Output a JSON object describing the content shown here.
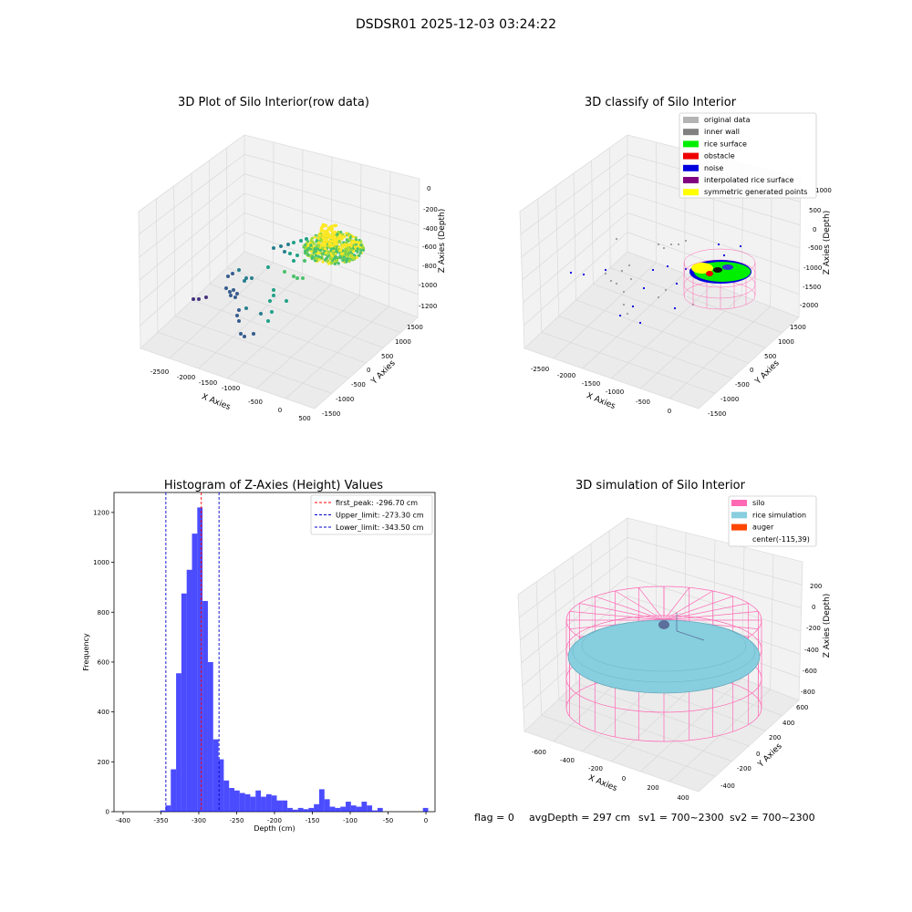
{
  "figure": {
    "suptitle": "DSDSR01 2025-12-03 03:24:22",
    "status": {
      "flag": "flag = 0",
      "avg_depth": "avgDepth = 297 cm",
      "sv1": "sv1 = 700~2300",
      "sv2": "sv2 = 700~2300"
    }
  },
  "panel_raw": {
    "title": "3D Plot of Silo Interior(row data)",
    "xlabel": "X Axies",
    "ylabel": "Y Axies",
    "zlabel": "Z Axies (Depth)",
    "xticks": [
      "-2500",
      "-2000",
      "-1500",
      "-1000",
      "-500",
      "0",
      "500"
    ],
    "yticks": [
      "-1500",
      "-1000",
      "-500",
      "0",
      "500",
      "1000",
      "1500"
    ],
    "zticks": [
      "0",
      "-200",
      "-400",
      "-600",
      "-800",
      "-1000",
      "-1200"
    ]
  },
  "panel_classify": {
    "title": "3D classify of Silo Interior",
    "xlabel": "X Axies",
    "ylabel": "Y Axies",
    "zlabel": "Z Axies (Depth)",
    "xticks": [
      "-2500",
      "-2000",
      "-1500",
      "-1000",
      "-500",
      "0"
    ],
    "yticks": [
      "-1500",
      "-1000",
      "-500",
      "0",
      "500",
      "1000",
      "1500"
    ],
    "zticks": [
      "1000",
      "500",
      "0",
      "-500",
      "-1000",
      "-1500",
      "-2000"
    ],
    "legend": [
      {
        "label": "original data",
        "color": "#b4b4b4"
      },
      {
        "label": "inner wall",
        "color": "#808080"
      },
      {
        "label": "rice surface",
        "color": "#00ee00"
      },
      {
        "label": "obstacle",
        "color": "#ee0000"
      },
      {
        "label": "noise",
        "color": "#0000dd"
      },
      {
        "label": "interpolated rice surface",
        "color": "#800080"
      },
      {
        "label": "symmetric generated points",
        "color": "#ffff00"
      }
    ]
  },
  "panel_sim": {
    "title": "3D simulation of Silo Interior",
    "xlabel": "X Axies",
    "ylabel": "Y Axies",
    "zlabel": "Z Axies (Depth)",
    "xticks": [
      "-600",
      "-400",
      "-200",
      "0",
      "200",
      "400"
    ],
    "yticks": [
      "-400",
      "-200",
      "0",
      "200",
      "400",
      "600"
    ],
    "zticks": [
      "200",
      "0",
      "-200",
      "-400",
      "-600",
      "-800"
    ],
    "legend": [
      {
        "label": "silo",
        "color": "#ff69b4"
      },
      {
        "label": "rice simulation",
        "color": "#87cedf"
      },
      {
        "label": "auger",
        "color": "#ff4500"
      },
      {
        "label": "center(-115,39)",
        "color": "none"
      }
    ]
  },
  "chart_data": {
    "type": "bar",
    "title": "Histogram of Z-Axies (Height) Values",
    "xlabel": "Depth (cm)",
    "ylabel": "Frequency",
    "xlim": [
      -412,
      12
    ],
    "ylim": [
      0,
      1280
    ],
    "bin_width": 7,
    "bin_starts": [
      -351,
      -344,
      -337,
      -330,
      -323,
      -316,
      -309,
      -302,
      -295,
      -288,
      -281,
      -274,
      -267,
      -260,
      -253,
      -246,
      -239,
      -232,
      -225,
      -218,
      -211,
      -204,
      -197,
      -190,
      -183,
      -176,
      -169,
      -162,
      -155,
      -148,
      -141,
      -134,
      -127,
      -120,
      -113,
      -106,
      -99,
      -92,
      -85,
      -78,
      -71,
      -64,
      -57,
      -50,
      -43,
      -36,
      -29,
      -4
    ],
    "values": [
      5,
      25,
      170,
      555,
      875,
      970,
      1115,
      1220,
      845,
      600,
      290,
      210,
      125,
      95,
      85,
      75,
      70,
      60,
      85,
      60,
      70,
      65,
      45,
      45,
      15,
      8,
      15,
      10,
      15,
      30,
      90,
      50,
      20,
      15,
      20,
      40,
      25,
      20,
      40,
      25,
      5,
      15,
      0,
      0,
      0,
      0,
      0,
      15
    ],
    "xticks": [
      -400,
      -350,
      -300,
      -250,
      -200,
      -150,
      -100,
      -50,
      0
    ],
    "yticks": [
      0,
      200,
      400,
      600,
      800,
      1000,
      1200
    ],
    "bar_color": "#0000ff",
    "vlines": [
      {
        "x": -296.7,
        "color": "#ff0000",
        "label": "first_peak: -296.70 cm"
      },
      {
        "x": -273.3,
        "color": "#0000cc",
        "label": "Upper_limit: -273.30 cm"
      },
      {
        "x": -343.5,
        "color": "#0000cc",
        "label": "Lower_limit: -343.50 cm"
      }
    ],
    "legend_position": "top-right"
  }
}
